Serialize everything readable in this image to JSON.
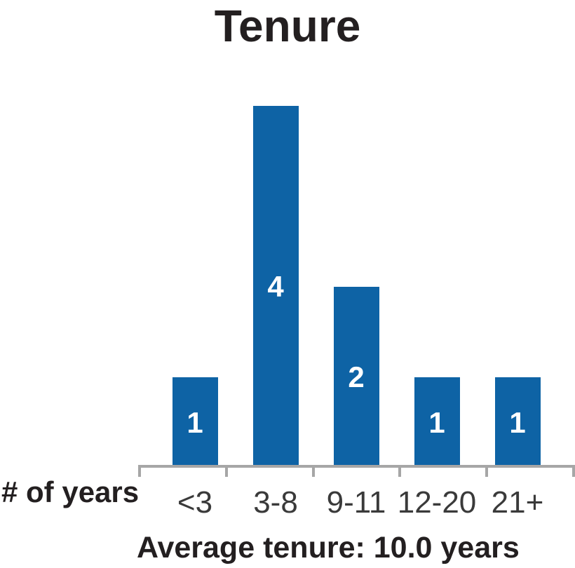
{
  "chart_data": {
    "type": "bar",
    "title": "Tenure",
    "categories": [
      "<3",
      "3-8",
      "9-11",
      "12-20",
      "21+"
    ],
    "values": [
      1,
      4,
      2,
      1,
      1
    ],
    "bar_labels": [
      "1",
      "4",
      "2",
      "1",
      "1"
    ],
    "xlabel": "# of years",
    "footer": "Average tenure: 10.0 years",
    "ylim": [
      0,
      4
    ],
    "grid": "off",
    "legend": "none",
    "bar_color": "#0e63a5",
    "axis_color": "#a6a6a6",
    "bar_label_color": "#ffffff",
    "text_color": "#231f20"
  }
}
